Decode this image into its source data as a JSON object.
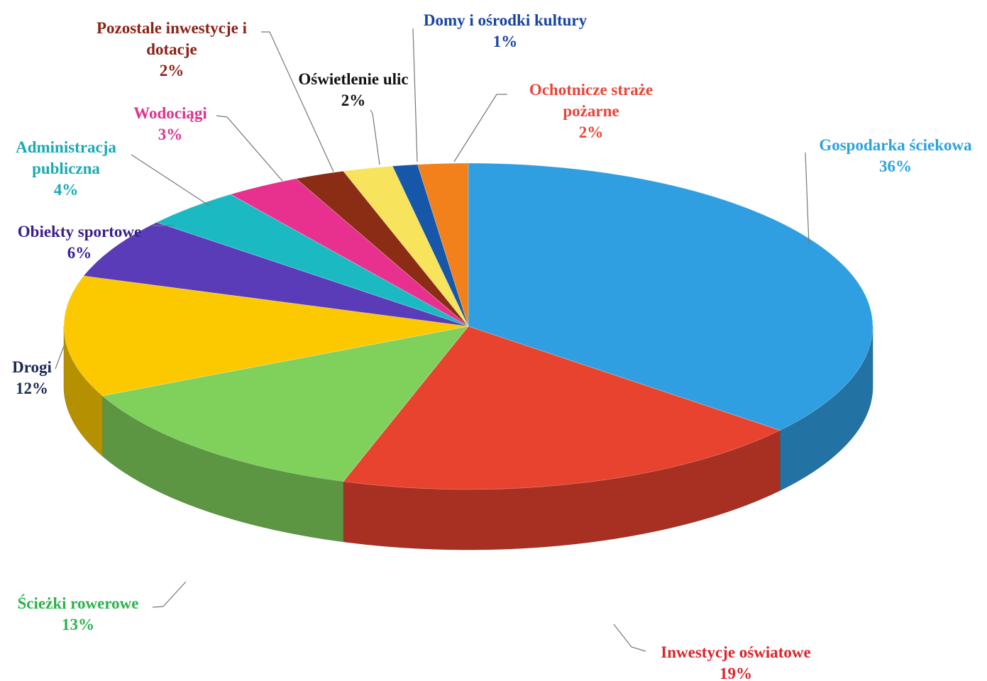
{
  "chart_data": {
    "type": "pie",
    "categories": [
      "Gospodarka ściekowa",
      "Inwestycje oświatowe",
      "Ścieżki rowerowe",
      "Drogi",
      "Obiekty sportowe",
      "Administracja publiczna",
      "Wodociągi",
      "Pozostale inwestycje i dotacje",
      "Oświetlenie ulic",
      "Domy i ośrodki kultury",
      "Ochotnicze straże pożarne"
    ],
    "values": [
      36,
      19,
      13,
      12,
      6,
      4,
      3,
      2,
      2,
      1,
      2
    ],
    "value_labels": [
      "36%",
      "19%",
      "13%",
      "12%",
      "6%",
      "4%",
      "3%",
      "2%",
      "2%",
      "1%",
      "2%"
    ],
    "colors": [
      "#2f9fe2",
      "#e8432f",
      "#80d05c",
      "#fcc800",
      "#5b3cb8",
      "#1bb9c1",
      "#e8318f",
      "#8b2c14",
      "#f8e35c",
      "#1657a9",
      "#f2801b"
    ],
    "label_colors": [
      "#2aa3dd",
      "#d9262b",
      "#2cb34a",
      "#1b2a55",
      "#3a1f8c",
      "#1aaab5",
      "#e0328c",
      "#8b2316",
      "#111111",
      "#1845a0",
      "#e8453a"
    ]
  }
}
